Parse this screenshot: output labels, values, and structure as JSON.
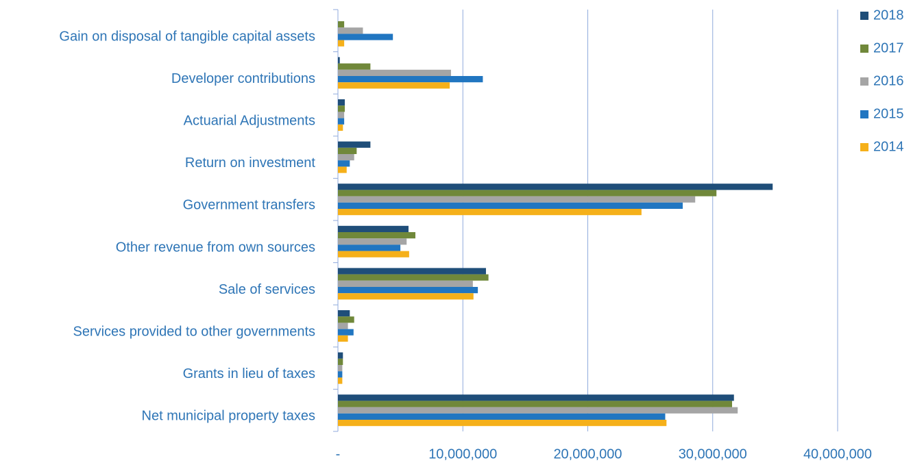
{
  "chart_data": {
    "type": "bar",
    "orientation": "horizontal",
    "categories": [
      "Gain on disposal of tangible capital assets",
      "Developer contributions",
      "Actuarial Adjustments",
      "Return on investment",
      "Government transfers",
      "Other revenue from own sources",
      "Sale of services",
      "Services provided to other governments",
      "Grants in lieu of taxes",
      "Net municipal property taxes"
    ],
    "series": [
      {
        "name": "2018",
        "color": "#1f4e79",
        "values": [
          0,
          150000,
          550000,
          2600000,
          34800000,
          5650000,
          11850000,
          950000,
          400000,
          31700000
        ]
      },
      {
        "name": "2017",
        "color": "#70883a",
        "values": [
          500000,
          2600000,
          550000,
          1500000,
          30300000,
          6200000,
          12050000,
          1300000,
          400000,
          31550000
        ]
      },
      {
        "name": "2016",
        "color": "#a5a5a5",
        "values": [
          2000000,
          9050000,
          500000,
          1300000,
          28600000,
          5500000,
          10800000,
          800000,
          350000,
          32000000
        ]
      },
      {
        "name": "2015",
        "color": "#2176c1",
        "values": [
          4400000,
          11600000,
          500000,
          950000,
          27600000,
          5000000,
          11200000,
          1250000,
          350000,
          26200000
        ]
      },
      {
        "name": "2014",
        "color": "#f5b01a",
        "values": [
          500000,
          8950000,
          400000,
          700000,
          24300000,
          5700000,
          10850000,
          800000,
          350000,
          26300000
        ]
      }
    ],
    "xlim": [
      0,
      40000000
    ],
    "xticks": [
      {
        "value": 0,
        "label": "-"
      },
      {
        "value": 10000000,
        "label": "10,000,000"
      },
      {
        "value": 20000000,
        "label": "20,000,000"
      },
      {
        "value": 30000000,
        "label": "30,000,000"
      },
      {
        "value": 40000000,
        "label": "40,000,000"
      }
    ],
    "grid": true,
    "legend": "right"
  }
}
